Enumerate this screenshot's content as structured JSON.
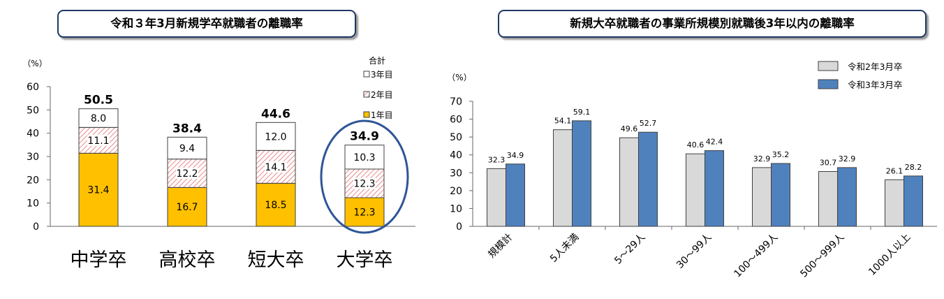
{
  "titles": {
    "left": "令和３年3月新規学卒就職者の離職率",
    "right": "新規大卒就職者の事業所規模別就職後3年以内の離職率"
  },
  "colors": {
    "year1": "#ffc000",
    "year2_hatch": "#e46c6c",
    "frame": "#2f5597",
    "reiwa2": "#d9d9d9",
    "reiwa3": "#4f81bd"
  },
  "chart_data": [
    {
      "type": "bar",
      "stacked": true,
      "title": "令和３年3月新規学卒就職者の離職率",
      "ylabel": "（%）",
      "ylim": [
        0,
        60
      ],
      "yticks": [
        "0",
        "10",
        "20",
        "30",
        "40",
        "50",
        "60"
      ],
      "categories": [
        "中学卒",
        "高校卒",
        "短大卒",
        "大学卒"
      ],
      "series": [
        {
          "name": "1年目",
          "values": [
            31.4,
            16.7,
            18.5,
            12.3
          ],
          "labels": [
            "31.4",
            "16.7",
            "18.5",
            "12.3"
          ]
        },
        {
          "name": "2年目",
          "values": [
            11.1,
            12.2,
            14.1,
            12.3
          ],
          "labels": [
            "11.1",
            "12.2",
            "14.1",
            "12.3"
          ]
        },
        {
          "name": "3年目",
          "values": [
            8.0,
            9.4,
            12.0,
            10.3
          ],
          "labels": [
            "8.0",
            "9.4",
            "12.0",
            "10.3"
          ]
        }
      ],
      "totals": [
        "50.5",
        "38.4",
        "44.6",
        "34.9"
      ],
      "legend_title": "合計",
      "legend": [
        "3年目",
        "2年目",
        "1年目"
      ],
      "highlight": "大学卒"
    },
    {
      "type": "bar",
      "title": "新規大卒就職者の事業所規模別就職後3年以内の離職率",
      "ylabel": "（%）",
      "ylim": [
        0,
        70
      ],
      "yticks": [
        "0",
        "10",
        "20",
        "30",
        "40",
        "50",
        "60",
        "70"
      ],
      "categories": [
        "規模計",
        "5人未満",
        "5～29人",
        "30～99人",
        "100～499人",
        "500～999人",
        "1000人以上"
      ],
      "series": [
        {
          "name": "令和2年3月卒",
          "values": [
            32.3,
            54.1,
            49.6,
            40.6,
            32.9,
            30.7,
            26.1
          ],
          "labels": [
            "32.3",
            "54.1",
            "49.6",
            "40.6",
            "32.9",
            "30.7",
            "26.1"
          ]
        },
        {
          "name": "令和3年3月卒",
          "values": [
            34.9,
            59.1,
            52.7,
            42.4,
            35.2,
            32.9,
            28.2
          ],
          "labels": [
            "34.9",
            "59.1",
            "52.7",
            "42.4",
            "35.2",
            "32.9",
            "28.2"
          ]
        }
      ]
    }
  ]
}
